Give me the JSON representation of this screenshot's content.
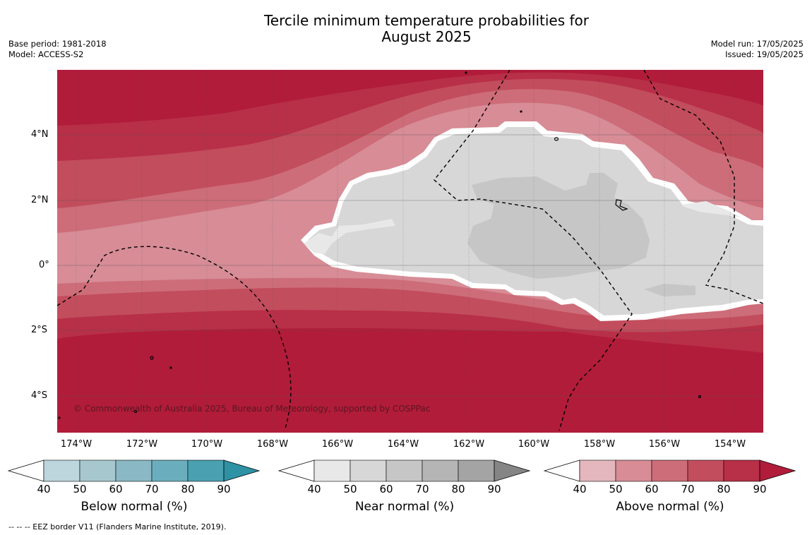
{
  "title_line1": "Tercile minimum temperature probabilities for",
  "title_line2": "August 2025",
  "base_period": "Base period: 1981-2018",
  "model": "Model: ACCESS-S2",
  "model_run": "Model run: 17/05/2025",
  "issued": "Issued: 19/05/2025",
  "map": {
    "lat_labels": [
      "4°N",
      "2°N",
      "0°",
      "2°S",
      "4°S"
    ],
    "lon_labels": [
      "174°W",
      "172°W",
      "170°W",
      "168°W",
      "166°W",
      "164°W",
      "162°W",
      "160°W",
      "158°W",
      "156°W",
      "154°W"
    ],
    "copyright": "© Commonwealth of Australia 2025, Bureau of Meteorology, supported by COSPPac",
    "colors": {
      "above_40_50": "#e3b7bd",
      "above_50_60": "#d78c96",
      "above_60_70": "#cd6d79",
      "above_70_80": "#c24d5c",
      "above_80_90": "#b82f48",
      "above_90plus": "#b11c3a",
      "near_50_60": "#d7d7d7",
      "near_60_70": "#c6c6c6",
      "near_40_50": "#e8e8e8"
    }
  },
  "colorbars": [
    {
      "title": "Below normal (%)",
      "ticks": [
        "40",
        "50",
        "60",
        "70",
        "80",
        "90"
      ],
      "colors": [
        "#ffffff",
        "#bdd5dc",
        "#a6c7ce",
        "#8ab8c4",
        "#6aaebd",
        "#4aa0b1",
        "#2e91a4"
      ]
    },
    {
      "title": "Near normal (%)",
      "ticks": [
        "40",
        "50",
        "60",
        "70",
        "80",
        "90"
      ],
      "colors": [
        "#ffffff",
        "#e8e8e8",
        "#d7d7d7",
        "#c6c6c6",
        "#b5b5b5",
        "#a4a4a4",
        "#858585"
      ]
    },
    {
      "title": "Above normal (%)",
      "ticks": [
        "40",
        "50",
        "60",
        "70",
        "80",
        "90"
      ],
      "colors": [
        "#ffffff",
        "#e3b7bd",
        "#d78c96",
        "#cd6d79",
        "#c24d5c",
        "#b82f48",
        "#b11c3a"
      ]
    }
  ],
  "footnote": "--  --  -- EEZ border V11 (Flanders Marine Institute, 2019)."
}
